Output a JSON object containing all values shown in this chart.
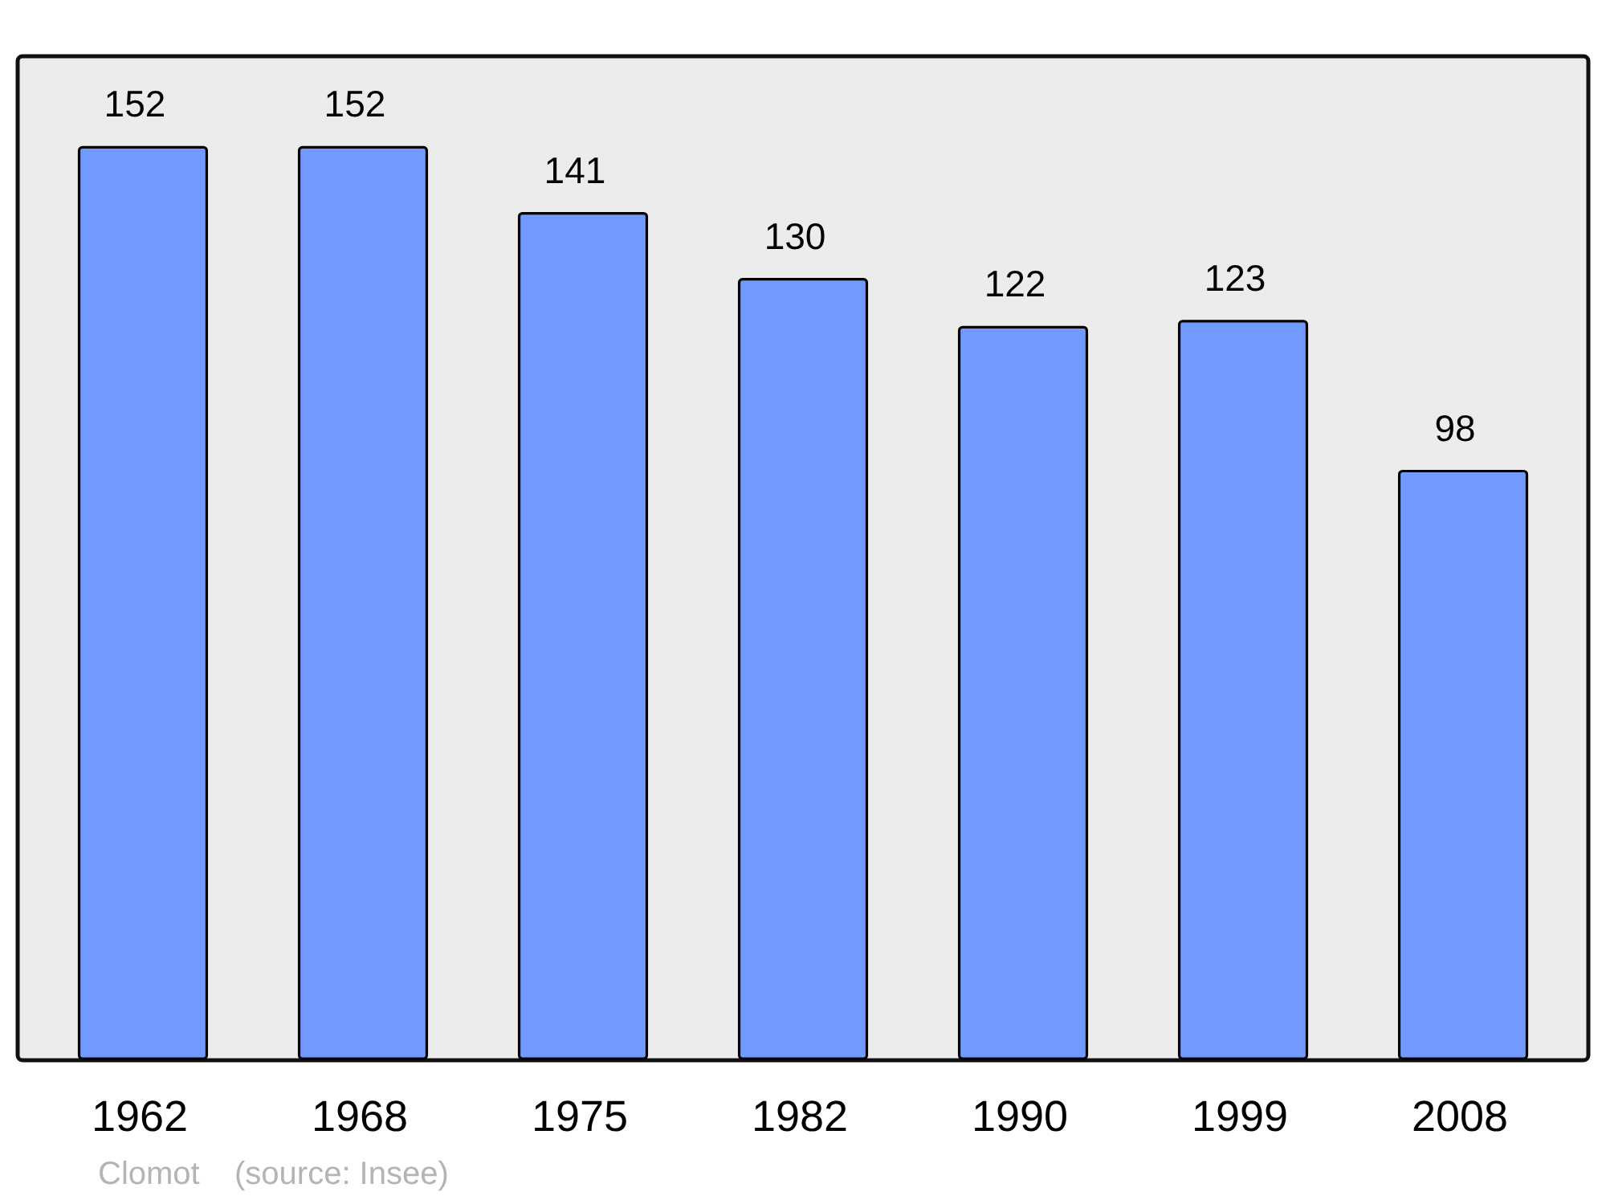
{
  "chart_data": {
    "type": "bar",
    "categories": [
      "1962",
      "1968",
      "1975",
      "1982",
      "1990",
      "1999",
      "2008"
    ],
    "values": [
      152,
      152,
      141,
      130,
      122,
      123,
      98
    ],
    "color": "#7299ff",
    "data_labels": true,
    "annotations": [
      "Clomot",
      "(source: Insee)"
    ]
  }
}
